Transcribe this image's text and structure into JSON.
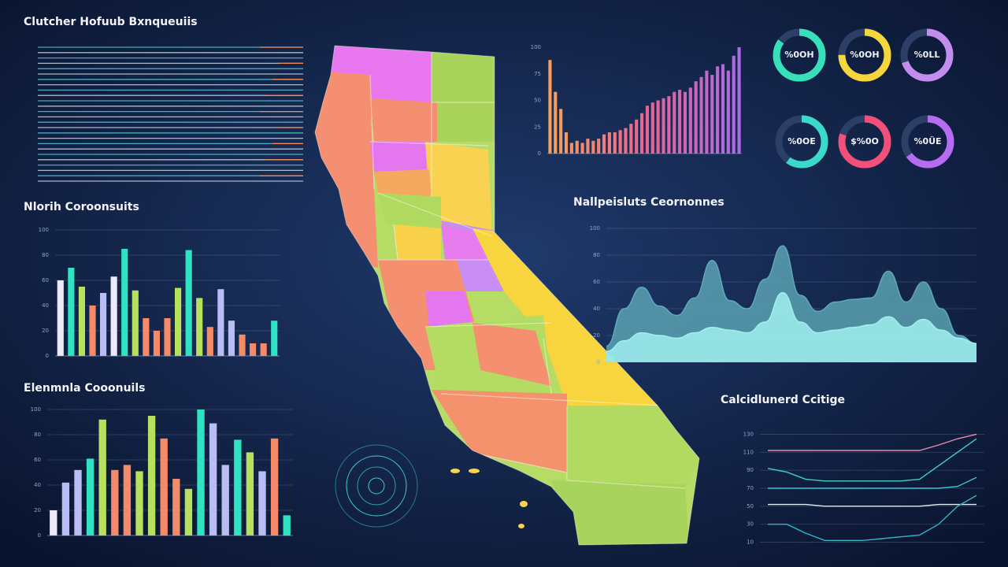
{
  "chart_data": [
    {
      "type": "bar",
      "title": "Nlorih Coroonsuits",
      "values": [
        60,
        70,
        55,
        40,
        50,
        63,
        85,
        52,
        30,
        20,
        30,
        54,
        84,
        46,
        23,
        53,
        28,
        17,
        10,
        10,
        28
      ],
      "colors": [
        "#eceaf6",
        "#2fe3c2",
        "#b7e05e",
        "#f58a68",
        "#b9bdf4",
        "#eceaf6",
        "#2fe3c2",
        "#b7e05e",
        "#f58a68",
        "#f58a68",
        "#f58a68",
        "#b7e05e",
        "#2fe3c2",
        "#b7e05e",
        "#f58a68",
        "#b9bdf4",
        "#b9bdf4",
        "#f58a68",
        "#f58a68",
        "#f58a68",
        "#2fe3c2"
      ],
      "ylim": [
        0,
        100
      ],
      "yticks": [
        0,
        20,
        40,
        60,
        80,
        100
      ],
      "grid": true
    },
    {
      "type": "bar",
      "title": "Elenmnla Cooonuils",
      "values": [
        20,
        42,
        52,
        61,
        92,
        52,
        56,
        51,
        95,
        77,
        45,
        37,
        100,
        89,
        56,
        76,
        66,
        51,
        77,
        16
      ],
      "colors": [
        "#eceaf6",
        "#b9bdf4",
        "#b9bdf4",
        "#2fe3c2",
        "#b7e05e",
        "#f58a68",
        "#f58a68",
        "#b7e05e",
        "#b7e05e",
        "#f58a68",
        "#f58a68",
        "#b7e05e",
        "#2fe3c2",
        "#b9bdf4",
        "#b9bdf4",
        "#2fe3c2",
        "#b7e05e",
        "#b9bdf4",
        "#f58a68",
        "#2fe3c2"
      ],
      "ylim": [
        0,
        100
      ],
      "yticks": [
        0,
        20,
        40,
        60,
        80,
        100
      ],
      "grid": true
    },
    {
      "type": "bar",
      "values": [
        88,
        58,
        42,
        20,
        10,
        12,
        10,
        14,
        12,
        14,
        18,
        20,
        20,
        22,
        24,
        28,
        32,
        38,
        45,
        48,
        50,
        52,
        54,
        58,
        60,
        58,
        62,
        68,
        72,
        78,
        74,
        82,
        84,
        78,
        92,
        100
      ],
      "gradient": [
        "#f6a35a",
        "#e9648f",
        "#a96be6"
      ],
      "ylim": [
        0,
        100
      ],
      "yticks": [
        0,
        25,
        50,
        75,
        100
      ],
      "grid": false
    },
    {
      "type": "donut",
      "series": [
        {
          "name": "%0OH",
          "color": "#37e0b8",
          "values": [
            85
          ]
        },
        {
          "name": "%0OH",
          "color": "#f5d63d",
          "values": [
            75
          ]
        },
        {
          "name": "%0LL",
          "color": "#c58cf0",
          "values": [
            70
          ]
        },
        {
          "name": "%0OE",
          "color": "#3bd9c9",
          "values": [
            60
          ]
        },
        {
          "name": "$%0O",
          "color": "#f0507a",
          "values": [
            80
          ]
        },
        {
          "name": "%0ÜE",
          "color": "#b56cf0",
          "values": [
            65
          ]
        }
      ]
    },
    {
      "type": "area",
      "title": "Nallpeisluts Ceornonnes",
      "series": [
        {
          "color": "#5fa9b8",
          "values": [
            12,
            40,
            56,
            42,
            35,
            48,
            76,
            46,
            40,
            62,
            87,
            50,
            38,
            45,
            47,
            48,
            68,
            45,
            60,
            40,
            20,
            14
          ]
        },
        {
          "color": "#9ff0ee",
          "values": [
            8,
            16,
            22,
            20,
            18,
            22,
            26,
            24,
            22,
            30,
            52,
            30,
            22,
            24,
            26,
            28,
            34,
            26,
            32,
            24,
            18,
            14
          ]
        }
      ],
      "ylim": [
        0,
        100
      ],
      "yticks": [
        0,
        20,
        40,
        60,
        80,
        100
      ],
      "grid": true
    },
    {
      "type": "line",
      "title": "Calcidlunerd Ccitige",
      "series": [
        {
          "color": "#e88aa8",
          "values": [
            112,
            112,
            112,
            112,
            112,
            112,
            112,
            112,
            112,
            118,
            125,
            130
          ]
        },
        {
          "color": "#3fd0c8",
          "values": [
            92,
            88,
            80,
            78,
            78,
            78,
            78,
            78,
            80,
            95,
            110,
            125
          ]
        },
        {
          "color": "#36c6d8",
          "values": [
            70,
            70,
            70,
            70,
            70,
            70,
            70,
            70,
            70,
            70,
            72,
            82
          ]
        },
        {
          "color": "#e6ecf5",
          "values": [
            52,
            52,
            52,
            50,
            50,
            50,
            50,
            50,
            50,
            52,
            52,
            52
          ]
        },
        {
          "color": "#2fb6c9",
          "values": [
            30,
            30,
            20,
            12,
            12,
            12,
            14,
            16,
            18,
            30,
            50,
            62
          ]
        }
      ],
      "ylim": [
        0,
        140
      ],
      "yticks": [
        10,
        30,
        50,
        70,
        90,
        110,
        130
      ],
      "grid": true
    }
  ]
}
